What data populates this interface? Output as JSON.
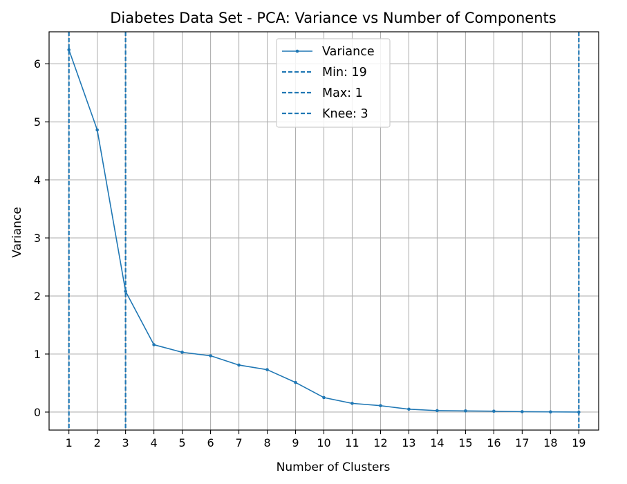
{
  "chart_data": {
    "type": "line",
    "title": "Diabetes Data Set - PCA: Variance vs Number of Components",
    "xlabel": "Number of Clusters",
    "ylabel": "Variance",
    "xlim": [
      0.3,
      19.7
    ],
    "ylim": [
      -0.31,
      6.55
    ],
    "x_ticks": [
      "1",
      "2",
      "3",
      "4",
      "5",
      "6",
      "7",
      "8",
      "9",
      "10",
      "11",
      "12",
      "13",
      "14",
      "15",
      "16",
      "17",
      "18",
      "19"
    ],
    "y_ticks": [
      "0",
      "1",
      "2",
      "3",
      "4",
      "5",
      "6"
    ],
    "grid": true,
    "legend_position": "top-center",
    "series": [
      {
        "name": "Variance",
        "color": "#1f77b4",
        "x": [
          1,
          2,
          3,
          4,
          5,
          6,
          7,
          8,
          9,
          10,
          11,
          12,
          13,
          14,
          15,
          16,
          17,
          18,
          19
        ],
        "values": [
          6.24,
          4.86,
          2.08,
          1.16,
          1.03,
          0.97,
          0.81,
          0.73,
          0.51,
          0.25,
          0.15,
          0.11,
          0.05,
          0.025,
          0.02,
          0.015,
          0.007,
          0.003,
          0.0
        ]
      }
    ],
    "vlines": [
      {
        "name": "Min: 19",
        "x": 19,
        "color": "#1f77b4",
        "style": "dashed"
      },
      {
        "name": "Max: 1",
        "x": 1,
        "color": "#1f77b4",
        "style": "dashed"
      },
      {
        "name": "Knee: 3",
        "x": 3,
        "color": "#1f77b4",
        "style": "dashed"
      }
    ]
  }
}
